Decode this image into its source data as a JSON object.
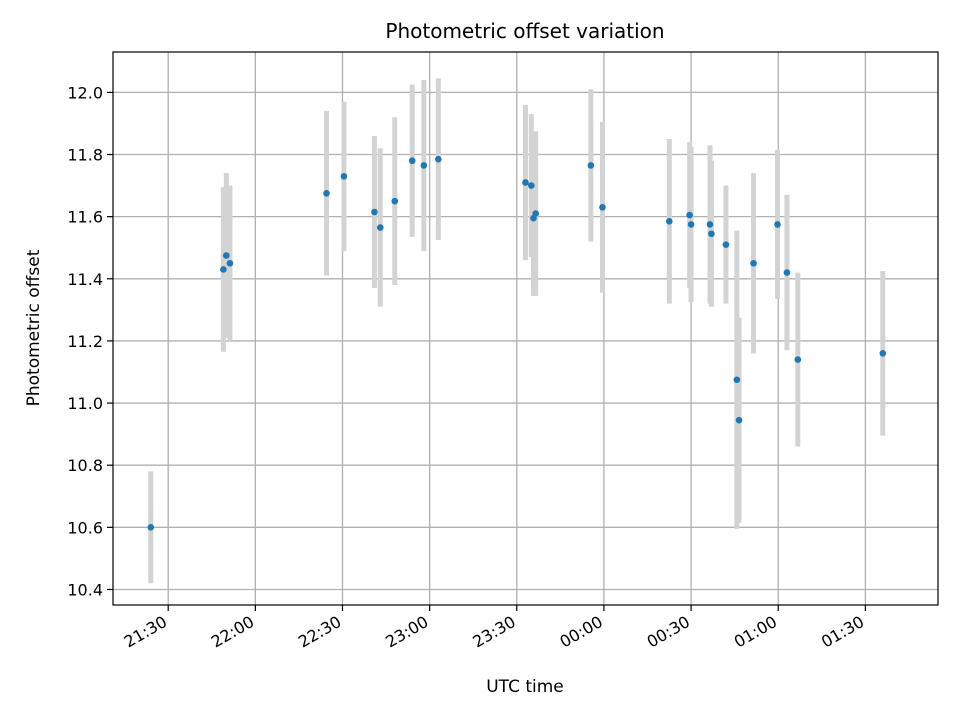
{
  "chart_data": {
    "type": "scatter",
    "title": "Photometric offset variation",
    "xlabel": "UTC time",
    "ylabel": "Photometric offset",
    "x_units": "UTC time of night starting at 21:00 (times after 24:00 continue past midnight)",
    "xlim": [
      "21:11",
      "01:55"
    ],
    "ylim": [
      10.35,
      12.13
    ],
    "x_ticks": [
      "21:30",
      "22:00",
      "22:30",
      "23:00",
      "23:30",
      "00:00",
      "00:30",
      "01:00",
      "01:30"
    ],
    "y_ticks": [
      "10.4",
      "10.6",
      "10.8",
      "11.0",
      "11.2",
      "11.4",
      "11.6",
      "11.8",
      "12.0"
    ],
    "grid": true,
    "colors": {
      "points": "#1f77b4",
      "errorbars": "#d3d3d3",
      "grid": "#b0b0b0"
    },
    "points": [
      {
        "t": "21:24:00",
        "y": 10.6,
        "err": 0.18
      },
      {
        "t": "21:49:00",
        "y": 11.43,
        "err": 0.265
      },
      {
        "t": "21:50:00",
        "y": 11.475,
        "err": 0.265
      },
      {
        "t": "21:51:15",
        "y": 11.45,
        "err": 0.25
      },
      {
        "t": "22:24:30",
        "y": 11.675,
        "err": 0.265
      },
      {
        "t": "22:30:30",
        "y": 11.73,
        "err": 0.24
      },
      {
        "t": "22:41:00",
        "y": 11.615,
        "err": 0.245
      },
      {
        "t": "22:43:00",
        "y": 11.565,
        "err": 0.255
      },
      {
        "t": "22:48:00",
        "y": 11.65,
        "err": 0.27
      },
      {
        "t": "22:54:00",
        "y": 11.78,
        "err": 0.245
      },
      {
        "t": "22:58:00",
        "y": 11.765,
        "err": 0.275
      },
      {
        "t": "23:03:00",
        "y": 11.785,
        "err": 0.26
      },
      {
        "t": "23:33:00",
        "y": 11.71,
        "err": 0.25
      },
      {
        "t": "23:35:00",
        "y": 11.7,
        "err": 0.23
      },
      {
        "t": "23:35:45",
        "y": 11.595,
        "err": 0.25
      },
      {
        "t": "23:36:30",
        "y": 11.61,
        "err": 0.265
      },
      {
        "t": "23:55:30",
        "y": 11.765,
        "err": 0.245
      },
      {
        "t": "23:59:30",
        "y": 11.63,
        "err": 0.275
      },
      {
        "t": "24:22:30",
        "y": 11.585,
        "err": 0.265
      },
      {
        "t": "24:29:30",
        "y": 11.605,
        "err": 0.235
      },
      {
        "t": "24:30:00",
        "y": 11.575,
        "err": 0.25
      },
      {
        "t": "24:36:30",
        "y": 11.575,
        "err": 0.255
      },
      {
        "t": "24:37:00",
        "y": 11.545,
        "err": 0.235
      },
      {
        "t": "24:42:00",
        "y": 11.51,
        "err": 0.19
      },
      {
        "t": "24:45:45",
        "y": 11.075,
        "err": 0.48
      },
      {
        "t": "24:46:30",
        "y": 10.945,
        "err": 0.33
      },
      {
        "t": "24:51:30",
        "y": 11.45,
        "err": 0.29
      },
      {
        "t": "24:59:45",
        "y": 11.575,
        "err": 0.24
      },
      {
        "t": "25:03:00",
        "y": 11.42,
        "err": 0.25
      },
      {
        "t": "25:06:45",
        "y": 11.14,
        "err": 0.28
      },
      {
        "t": "25:36:00",
        "y": 11.16,
        "err": 0.265
      }
    ]
  }
}
